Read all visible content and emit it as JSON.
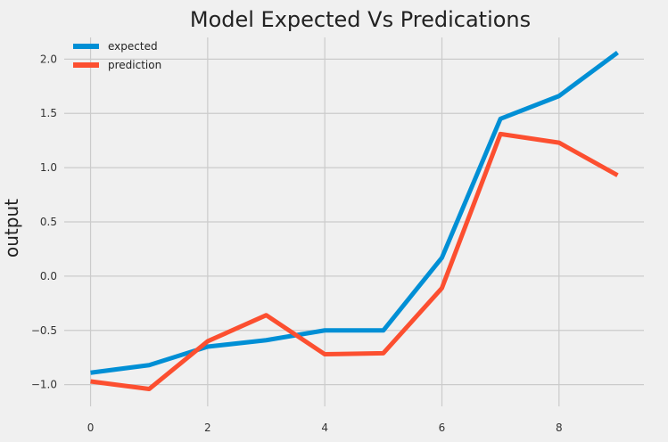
{
  "chart_data": {
    "type": "line",
    "title": "Model Expected Vs Predications",
    "xlabel": "",
    "ylabel": "output",
    "x": [
      0,
      1,
      2,
      3,
      4,
      5,
      6,
      7,
      8,
      9
    ],
    "xticks": [
      0,
      2,
      4,
      6,
      8
    ],
    "xtick_labels": [
      "0",
      "2",
      "4",
      "6",
      "8"
    ],
    "yticks": [
      -1.0,
      -0.5,
      0.0,
      0.5,
      1.0,
      1.5,
      2.0
    ],
    "ytick_labels": [
      "−1.0",
      "−0.5",
      "0.0",
      "0.5",
      "1.0",
      "1.5",
      "2.0"
    ],
    "xlim": [
      -0.45,
      9.45
    ],
    "ylim": [
      -1.2,
      2.2
    ],
    "grid": true,
    "legend_position": "top-left",
    "series": [
      {
        "name": "expected",
        "color": "#008fd5",
        "values": [
          -0.89,
          -0.82,
          -0.65,
          -0.59,
          -0.5,
          -0.5,
          0.17,
          1.45,
          1.66,
          2.06
        ]
      },
      {
        "name": "prediction",
        "color": "#fc4f30",
        "values": [
          -0.97,
          -1.04,
          -0.6,
          -0.36,
          -0.72,
          -0.71,
          -0.11,
          1.31,
          1.23,
          0.93
        ]
      }
    ]
  }
}
